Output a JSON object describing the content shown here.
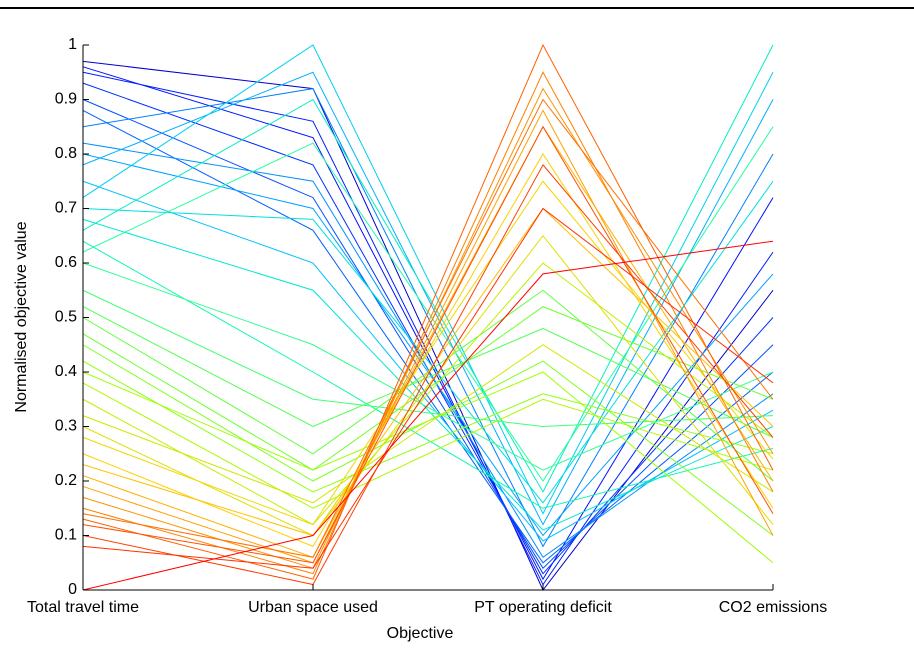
{
  "chart_data": {
    "type": "parallel",
    "xlabel": "Objective",
    "ylabel": "Normalised objective value",
    "categories": [
      "Total travel time",
      "Urban space used",
      "PT operating deficit",
      "CO2 emissions"
    ],
    "ylim": [
      0,
      1
    ],
    "yticks": [
      0,
      0.1,
      0.2,
      0.3,
      0.4,
      0.5,
      0.6,
      0.7,
      0.8,
      0.9,
      1
    ],
    "series": [
      {
        "color": "#0000d0",
        "values": [
          0.97,
          0.92,
          0.0,
          0.55
        ]
      },
      {
        "color": "#0010ff",
        "values": [
          0.96,
          0.83,
          0.02,
          0.72
        ]
      },
      {
        "color": "#0020ff",
        "values": [
          0.95,
          0.86,
          0.01,
          0.62
        ]
      },
      {
        "color": "#0030ff",
        "values": [
          0.93,
          0.78,
          0.03,
          0.5
        ]
      },
      {
        "color": "#0050ff",
        "values": [
          0.9,
          0.72,
          0.04,
          0.45
        ]
      },
      {
        "color": "#0060ff",
        "values": [
          0.88,
          0.66,
          0.05,
          0.4
        ]
      },
      {
        "color": "#0080ff",
        "values": [
          0.85,
          0.92,
          0.08,
          0.8
        ]
      },
      {
        "color": "#0090ff",
        "values": [
          0.82,
          0.75,
          0.06,
          0.36
        ]
      },
      {
        "color": "#00a0ff",
        "values": [
          0.8,
          0.7,
          0.1,
          0.58
        ]
      },
      {
        "color": "#00b0ff",
        "values": [
          0.78,
          0.95,
          0.12,
          0.9
        ]
      },
      {
        "color": "#00c0ff",
        "values": [
          0.75,
          0.6,
          0.09,
          0.33
        ]
      },
      {
        "color": "#00d0f0",
        "values": [
          0.72,
          1.0,
          0.14,
          0.95
        ]
      },
      {
        "color": "#00e0e0",
        "values": [
          0.7,
          0.68,
          0.16,
          0.75
        ]
      },
      {
        "color": "#00e8d0",
        "values": [
          0.68,
          0.55,
          0.11,
          0.3
        ]
      },
      {
        "color": "#00f0c0",
        "values": [
          0.66,
          0.9,
          0.18,
          1.0
        ]
      },
      {
        "color": "#10f8b0",
        "values": [
          0.64,
          0.4,
          0.15,
          0.26
        ]
      },
      {
        "color": "#20ffa0",
        "values": [
          0.62,
          0.82,
          0.2,
          0.85
        ]
      },
      {
        "color": "#30ff90",
        "values": [
          0.6,
          0.45,
          0.22,
          0.4
        ]
      },
      {
        "color": "#40ff70",
        "values": [
          0.55,
          0.35,
          0.3,
          0.32
        ]
      },
      {
        "color": "#50ff50",
        "values": [
          0.52,
          0.3,
          0.48,
          0.28
        ]
      },
      {
        "color": "#60ff40",
        "values": [
          0.5,
          0.25,
          0.55,
          0.2
        ]
      },
      {
        "color": "#70ff30",
        "values": [
          0.47,
          0.22,
          0.52,
          0.35
        ]
      },
      {
        "color": "#80ff20",
        "values": [
          0.45,
          0.2,
          0.42,
          0.1
        ]
      },
      {
        "color": "#90ff10",
        "values": [
          0.42,
          0.18,
          0.36,
          0.25
        ]
      },
      {
        "color": "#a0ff00",
        "values": [
          0.4,
          0.22,
          0.4,
          0.05
        ]
      },
      {
        "color": "#b0f800",
        "values": [
          0.38,
          0.15,
          0.35,
          0.22
        ]
      },
      {
        "color": "#c0f000",
        "values": [
          0.35,
          0.12,
          0.6,
          0.28
        ]
      },
      {
        "color": "#d0e800",
        "values": [
          0.32,
          0.16,
          0.45,
          0.18
        ]
      },
      {
        "color": "#e0e000",
        "values": [
          0.3,
          0.1,
          0.65,
          0.12
        ]
      },
      {
        "color": "#f0d800",
        "values": [
          0.28,
          0.12,
          0.75,
          0.24
        ]
      },
      {
        "color": "#ffd000",
        "values": [
          0.25,
          0.08,
          0.8,
          0.15
        ]
      },
      {
        "color": "#ffc000",
        "values": [
          0.23,
          0.1,
          0.7,
          0.3
        ]
      },
      {
        "color": "#ffb000",
        "values": [
          0.21,
          0.06,
          0.85,
          0.2
        ]
      },
      {
        "color": "#ffa000",
        "values": [
          0.19,
          0.05,
          0.88,
          0.1
        ]
      },
      {
        "color": "#ff9000",
        "values": [
          0.17,
          0.04,
          0.92,
          0.25
        ]
      },
      {
        "color": "#ff8000",
        "values": [
          0.15,
          0.03,
          0.95,
          0.18
        ]
      },
      {
        "color": "#ff7000",
        "values": [
          0.14,
          0.06,
          0.9,
          0.35
        ]
      },
      {
        "color": "#ff6000",
        "values": [
          0.13,
          0.02,
          1.0,
          0.22
        ]
      },
      {
        "color": "#ff5000",
        "values": [
          0.12,
          0.05,
          0.85,
          0.14
        ]
      },
      {
        "color": "#ff4000",
        "values": [
          0.1,
          0.01,
          0.78,
          0.28
        ]
      },
      {
        "color": "#ff3000",
        "values": [
          0.08,
          0.04,
          0.7,
          0.38
        ]
      },
      {
        "color": "#ff0000",
        "values": [
          0.0,
          0.1,
          0.58,
          0.64
        ]
      }
    ]
  }
}
